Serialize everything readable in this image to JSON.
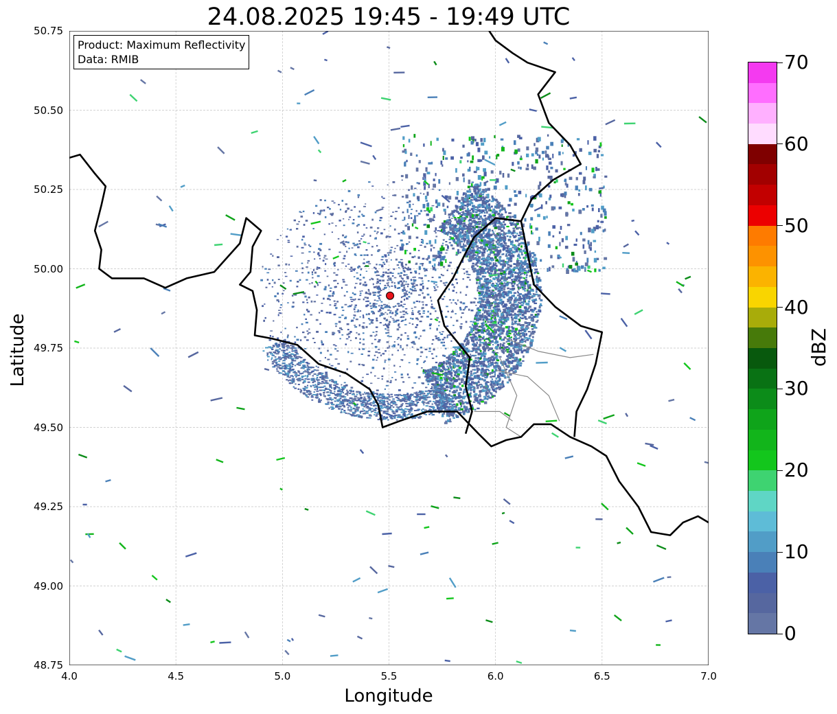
{
  "title": "24.08.2025 19:45 - 19:49 UTC",
  "info": {
    "product": "Product: Maximum Reflectivity",
    "data": "Data: RMIB"
  },
  "axes": {
    "xlabel": "Longitude",
    "ylabel": "Latitude",
    "xlim": [
      4.0,
      7.0
    ],
    "ylim": [
      48.75,
      50.75
    ],
    "xticks": [
      "4.0",
      "4.5",
      "5.0",
      "5.5",
      "6.0",
      "6.5",
      "7.0"
    ],
    "yticks": [
      "48.75",
      "49.00",
      "49.25",
      "49.50",
      "49.75",
      "50.00",
      "50.25",
      "50.50",
      "50.75"
    ],
    "grid": true
  },
  "radar_site": {
    "lon": 5.505,
    "lat": 49.915,
    "color": "#e8141b"
  },
  "colorbar": {
    "label": "dBZ",
    "min": 0,
    "max": 70,
    "tick_labels": [
      "0",
      "10",
      "20",
      "30",
      "40",
      "50",
      "60",
      "70"
    ],
    "colors": [
      "#6576a5",
      "#56679f",
      "#4b61a6",
      "#4a80b8",
      "#519dc7",
      "#5ebcd7",
      "#5fd6c5",
      "#3ed371",
      "#13c61c",
      "#12b51b",
      "#0fa41a",
      "#0c8c19",
      "#097214",
      "#08590d",
      "#477a0a",
      "#a8ac0a",
      "#f9d500",
      "#fbb300",
      "#fd9200",
      "#fe7b00",
      "#ec0000",
      "#c20000",
      "#a20000",
      "#7f0000",
      "#ffdcff",
      "#ffb0ff",
      "#ff6eff",
      "#f43af0"
    ]
  },
  "borders": {
    "country_color": "#000000",
    "province_color": "#888888",
    "country": [
      [
        [
          4.0,
          50.35
        ],
        [
          4.05,
          50.36
        ],
        [
          4.12,
          50.3
        ],
        [
          4.17,
          50.26
        ],
        [
          4.15,
          50.2
        ],
        [
          4.12,
          50.12
        ],
        [
          4.15,
          50.06
        ],
        [
          4.14,
          50.0
        ],
        [
          4.2,
          49.97
        ],
        [
          4.35,
          49.97
        ],
        [
          4.45,
          49.94
        ],
        [
          4.55,
          49.97
        ],
        [
          4.68,
          49.99
        ],
        [
          4.8,
          50.08
        ],
        [
          4.83,
          50.16
        ],
        [
          4.9,
          50.12
        ],
        [
          4.86,
          50.07
        ],
        [
          4.85,
          49.99
        ],
        [
          4.8,
          49.95
        ],
        [
          4.86,
          49.93
        ],
        [
          4.88,
          49.87
        ],
        [
          4.87,
          49.79
        ],
        [
          4.95,
          49.78
        ],
        [
          5.07,
          49.76
        ],
        [
          5.17,
          49.7
        ],
        [
          5.3,
          49.67
        ],
        [
          5.41,
          49.62
        ],
        [
          5.45,
          49.57
        ],
        [
          5.47,
          49.5
        ],
        [
          5.55,
          49.52
        ],
        [
          5.68,
          49.55
        ],
        [
          5.75,
          49.55
        ],
        [
          5.82,
          49.55
        ],
        [
          5.92,
          49.48
        ],
        [
          5.98,
          49.44
        ],
        [
          6.05,
          49.46
        ],
        [
          6.12,
          49.47
        ],
        [
          6.18,
          49.51
        ],
        [
          6.26,
          49.51
        ],
        [
          6.35,
          49.47
        ],
        [
          6.45,
          49.44
        ],
        [
          6.52,
          49.41
        ],
        [
          6.58,
          49.33
        ],
        [
          6.67,
          49.25
        ],
        [
          6.73,
          49.17
        ],
        [
          6.82,
          49.16
        ],
        [
          6.88,
          49.2
        ],
        [
          6.95,
          49.22
        ],
        [
          7.0,
          49.2
        ]
      ],
      [
        [
          5.97,
          50.75
        ],
        [
          6.0,
          50.72
        ],
        [
          6.08,
          50.68
        ],
        [
          6.15,
          50.65
        ],
        [
          6.28,
          50.62
        ],
        [
          6.2,
          50.55
        ],
        [
          6.25,
          50.46
        ],
        [
          6.35,
          50.39
        ],
        [
          6.4,
          50.33
        ],
        [
          6.27,
          50.28
        ],
        [
          6.17,
          50.22
        ],
        [
          6.12,
          50.15
        ],
        [
          6.0,
          50.16
        ],
        [
          5.9,
          50.1
        ],
        [
          5.86,
          50.05
        ],
        [
          5.8,
          49.97
        ],
        [
          5.73,
          49.9
        ],
        [
          5.76,
          49.82
        ],
        [
          5.88,
          49.72
        ],
        [
          5.86,
          49.63
        ],
        [
          5.89,
          49.55
        ],
        [
          5.86,
          49.48
        ]
      ],
      [
        [
          6.12,
          50.15
        ],
        [
          6.15,
          50.05
        ],
        [
          6.18,
          49.95
        ],
        [
          6.28,
          49.88
        ],
        [
          6.4,
          49.82
        ],
        [
          6.5,
          49.8
        ],
        [
          6.47,
          49.7
        ],
        [
          6.43,
          49.62
        ],
        [
          6.38,
          49.55
        ],
        [
          6.37,
          49.47
        ]
      ]
    ],
    "province": [
      [
        [
          6.05,
          49.78
        ],
        [
          6.2,
          49.74
        ],
        [
          6.35,
          49.72
        ],
        [
          6.46,
          49.73
        ]
      ],
      [
        [
          6.0,
          49.68
        ],
        [
          6.15,
          49.66
        ],
        [
          6.25,
          49.6
        ],
        [
          6.3,
          49.52
        ]
      ],
      [
        [
          6.02,
          49.72
        ],
        [
          6.1,
          49.6
        ],
        [
          6.05,
          49.5
        ],
        [
          6.12,
          49.47
        ]
      ],
      [
        [
          5.9,
          49.55
        ],
        [
          6.02,
          49.55
        ],
        [
          6.08,
          49.52
        ]
      ]
    ]
  }
}
